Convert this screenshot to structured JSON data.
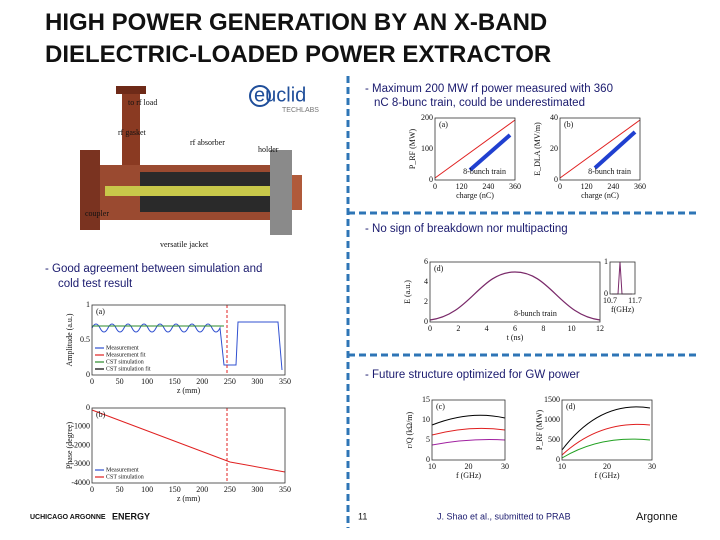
{
  "header": {
    "title_line1": "HIGH POWER GENERATION BY AN X-BAND",
    "title_line2": "DIELECTRIC-LOADED POWER EXTRACTOR"
  },
  "bullets": [
    {
      "line1": "- Maximum 200 MW rf power measured with 360",
      "line2": "nC 8-bunc train, could be underestimated"
    },
    {
      "line1": "- No sign of breakdown nor multipacting"
    },
    {
      "line1": "- Good agreement between simulation and",
      "line2": "cold test result"
    },
    {
      "line1": "- Future structure optimized for GW power"
    }
  ],
  "figures": {
    "device": {
      "labels": [
        "to rf load",
        "rf gasket",
        "rf absorber",
        "holder",
        "coupler",
        "versatile jacket"
      ]
    },
    "logo": {
      "name": "euclid",
      "sub": "TECHLABS"
    },
    "power": {
      "panels": [
        {
          "tag": "(a)",
          "ylabel": "P_RF (MW)",
          "yticks": [
            "200",
            "100",
            "0"
          ],
          "note": "8-bunch train",
          "xticks": [
            "0",
            "120",
            "240",
            "360"
          ],
          "xlabel": "charge (nC)"
        },
        {
          "tag": "(b)",
          "ylabel": "E_DLA (MV/m)",
          "yticks": [
            "40",
            "20",
            "0"
          ],
          "note": "8-bunch train",
          "xticks": [
            "0",
            "120",
            "240",
            "360"
          ],
          "xlabel": "charge (nC)"
        }
      ]
    },
    "spectrum": {
      "tag": "(d)",
      "note": "8-bunch train",
      "ylabel": "E (a.u.)",
      "yticks": [
        "6",
        "4",
        "2",
        "0"
      ],
      "xticks": [
        "0",
        "2",
        "4",
        "6",
        "8",
        "10",
        "12"
      ],
      "xlabel": "t (ns)",
      "inset": {
        "yticks": [
          "1",
          "0"
        ],
        "xticks": [
          "10.7",
          "11.7"
        ],
        "xlabel": "f(GHz)"
      }
    },
    "amplitude": {
      "tag": "(a)",
      "ylabel": "Amplitude (a.u.)",
      "yticks": [
        "1",
        "0.5",
        "0"
      ],
      "xticks": [
        "0",
        "50",
        "100",
        "150",
        "200",
        "250",
        "300",
        "350"
      ],
      "xlabel": "z (mm)",
      "legend": [
        "Measurement",
        "Measurement fit",
        "CST simulation",
        "CST simulation fit"
      ]
    },
    "phase": {
      "tag": "(b)",
      "ylabel": "Phase (degree)",
      "yticks": [
        "0",
        "-1000",
        "-2000",
        "-3000",
        "-4000"
      ],
      "xticks": [
        "0",
        "50",
        "100",
        "150",
        "200",
        "250",
        "300",
        "350"
      ],
      "xlabel": "z (mm)",
      "legend": [
        "Measurement",
        "CST simulation"
      ]
    },
    "design": {
      "panels": [
        {
          "tag": "(c)",
          "ylabel": "r/Q (kΩ/m)",
          "yticks": [
            "15",
            "10",
            "5",
            "0"
          ],
          "xticks": [
            "10",
            "20",
            "30"
          ],
          "xlabel": "f (GHz)"
        },
        {
          "tag": "(d)",
          "ylabel": "P_RF (MW)",
          "yticks": [
            "1500",
            "1000",
            "500",
            "0"
          ],
          "xticks": [
            "10",
            "20",
            "30"
          ],
          "xlabel": "f (GHz)"
        }
      ]
    }
  },
  "footer": {
    "page": "11",
    "citation": "J. Shao et al., submitted to PRAB",
    "logos": [
      "UCHICAGO ARGONNE",
      "ENERGY",
      "Argonne"
    ]
  }
}
